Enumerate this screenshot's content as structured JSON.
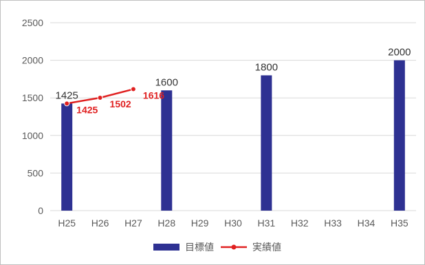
{
  "chart_data": {
    "type": "bar",
    "categories": [
      "H25",
      "H26",
      "H27",
      "H28",
      "H29",
      "H30",
      "H31",
      "H32",
      "H33",
      "H34",
      "H35"
    ],
    "ylim": [
      0,
      2500
    ],
    "yticks": [
      0,
      500,
      1000,
      1500,
      2000,
      2500
    ],
    "grid": true,
    "legend_position": "bottom",
    "series": [
      {
        "name": "目標値",
        "kind": "bar",
        "color": "#2e3192",
        "values": [
          1425,
          null,
          null,
          1600,
          null,
          null,
          1800,
          null,
          null,
          null,
          2000
        ],
        "labels": [
          "1425",
          "",
          "",
          "1600",
          "",
          "",
          "1800",
          "",
          "",
          "",
          "2000"
        ]
      },
      {
        "name": "実績値",
        "kind": "line",
        "color": "#e02020",
        "values": [
          1425,
          1502,
          1616,
          null,
          null,
          null,
          null,
          null,
          null,
          null,
          null
        ],
        "labels": [
          "1425",
          "1502",
          "1616",
          "",
          "",
          "",
          "",
          "",
          "",
          "",
          ""
        ]
      }
    ]
  }
}
